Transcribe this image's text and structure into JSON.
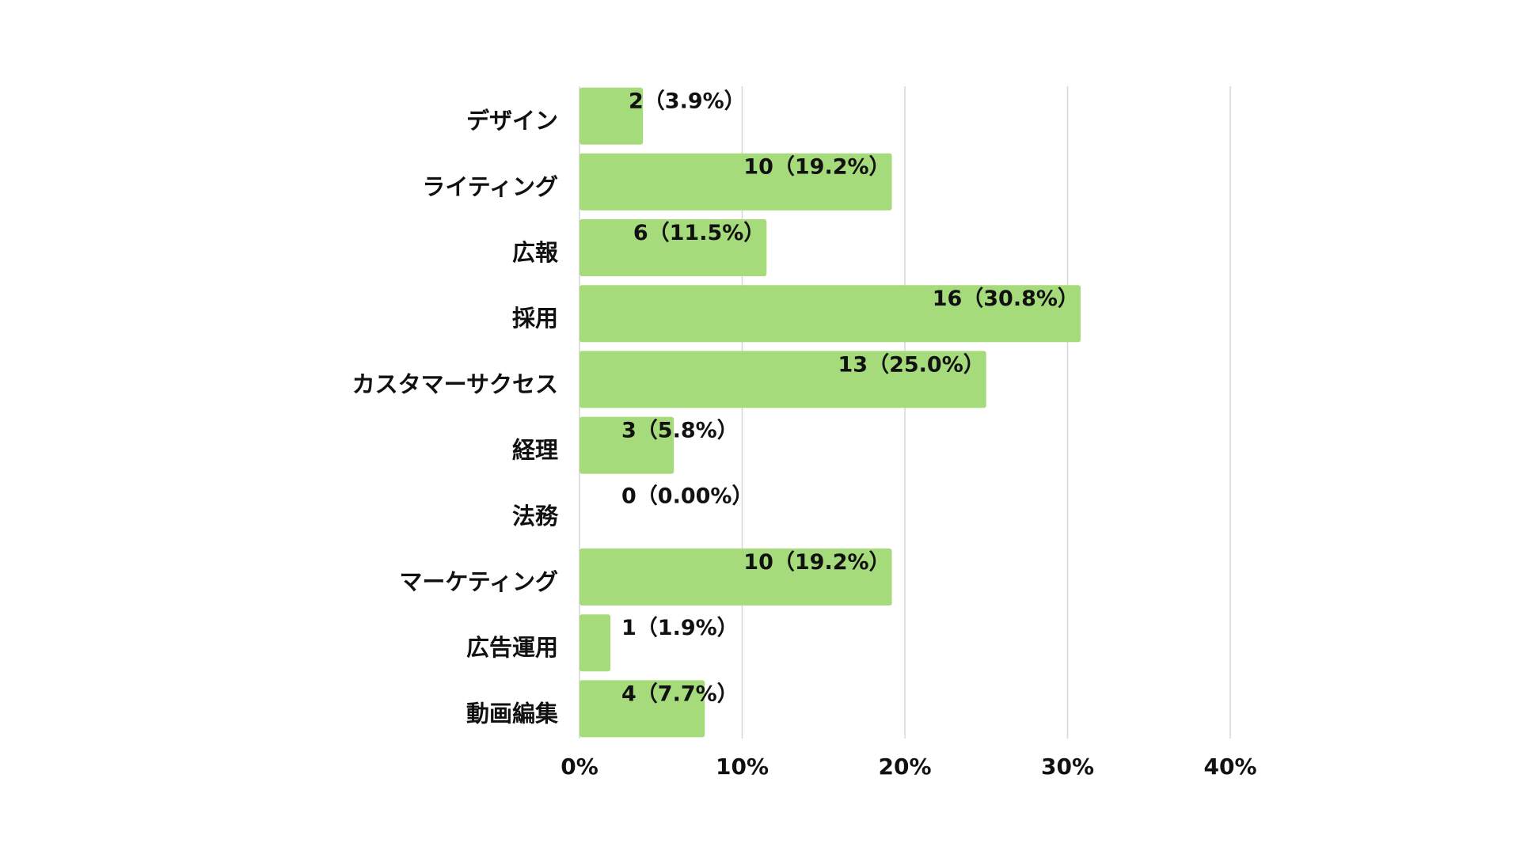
{
  "chart_data": {
    "type": "bar",
    "orientation": "horizontal",
    "categories": [
      "デザイン",
      "ライティング",
      "広報",
      "採用",
      "カスタマーサクセス",
      "経理",
      "法務",
      "マーケティング",
      "広告運用",
      "動画編集"
    ],
    "counts": [
      2,
      10,
      6,
      16,
      13,
      3,
      0,
      10,
      1,
      4
    ],
    "values": [
      3.9,
      19.2,
      11.5,
      30.8,
      25.0,
      5.8,
      0.0,
      19.2,
      1.9,
      7.7
    ],
    "data_labels": [
      "2（3.9%）",
      "10（19.2%）",
      "6（11.5%）",
      "16（30.8%）",
      "13（25.0%）",
      "3（5.8%）",
      "0（0.00%）",
      "10（19.2%）",
      "1（1.9%）",
      "4（7.7%）"
    ],
    "x_ticks": [
      "0%",
      "10%",
      "20%",
      "30%",
      "40%"
    ],
    "xlim": [
      0,
      40
    ],
    "unit": "%",
    "grid": true,
    "legend": "none",
    "bar_color": "#a6db7c"
  }
}
